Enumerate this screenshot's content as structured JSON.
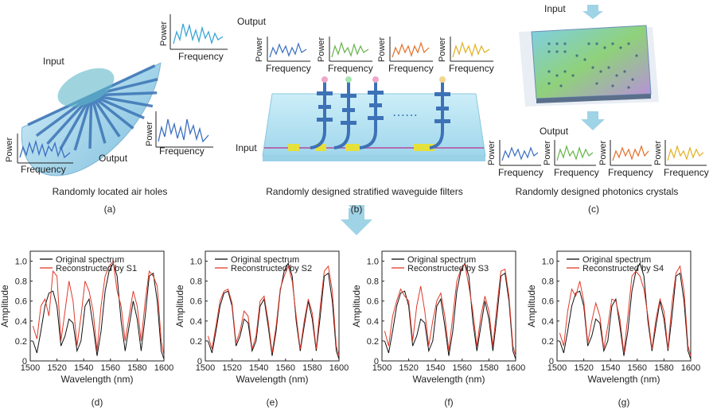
{
  "panels": {
    "a": {
      "caption": "Randomly located air holes",
      "letter": "(a)",
      "input_label": "Input",
      "output_label": "Output",
      "power_label": "Power",
      "frequency_label": "Frequency"
    },
    "b": {
      "caption": "Randomly designed stratified waveguide filters",
      "letter": "(b)",
      "input_label": "Input",
      "output_label": "Output",
      "power_label": "Power",
      "frequency_label": "Frequency",
      "dots": "......"
    },
    "c": {
      "caption": "Randomly designed photonics crystals",
      "letter": "(c)",
      "input_label": "Input",
      "output_label": "Output",
      "power_label": "Power",
      "frequency_label": "Frequency"
    }
  },
  "colors": {
    "blue": "#4a7fc0",
    "cyan": "#3aa6d6",
    "green": "#66b34a",
    "orange": "#e2712a",
    "yellow": "#e0b020",
    "arrow": "#9fd3e6",
    "original": "#111111",
    "reconstructed": "#e03a2a"
  },
  "chart_data": [
    {
      "type": "line",
      "letter": "(d)",
      "xlabel": "Wavelength (nm)",
      "ylabel": "Amplitude",
      "xlim": [
        1500,
        1600
      ],
      "ylim": [
        0,
        1.1
      ],
      "xticks": [
        1500,
        1520,
        1540,
        1560,
        1580,
        1600
      ],
      "yticks": [
        0,
        0.2,
        0.4,
        0.6,
        0.8,
        1.0
      ],
      "series": [
        {
          "name": "Original spectrum",
          "x": [
            1502,
            1505,
            1508,
            1511,
            1514,
            1517,
            1520,
            1523,
            1526,
            1529,
            1532,
            1535,
            1538,
            1541,
            1544,
            1547,
            1550,
            1553,
            1556,
            1559,
            1562,
            1565,
            1568,
            1571,
            1574,
            1577,
            1580,
            1583,
            1586,
            1589,
            1592,
            1595,
            1598,
            1600
          ],
          "y": [
            0.2,
            0.08,
            0.3,
            0.55,
            0.68,
            0.7,
            0.55,
            0.15,
            0.25,
            0.42,
            0.38,
            0.1,
            0.2,
            0.55,
            0.62,
            0.35,
            0.05,
            0.3,
            0.7,
            0.9,
            0.98,
            0.85,
            0.4,
            0.1,
            0.35,
            0.6,
            0.42,
            0.1,
            0.45,
            0.85,
            0.88,
            0.6,
            0.1,
            0.02
          ]
        },
        {
          "name": "Reconstructed by S1",
          "x": [
            1502,
            1505,
            1508,
            1511,
            1514,
            1517,
            1520,
            1523,
            1526,
            1529,
            1532,
            1535,
            1538,
            1541,
            1544,
            1547,
            1550,
            1553,
            1556,
            1559,
            1562,
            1565,
            1568,
            1571,
            1574,
            1577,
            1580,
            1583,
            1586,
            1589,
            1592,
            1595,
            1598,
            1600
          ],
          "y": [
            0.35,
            0.22,
            0.55,
            0.62,
            0.45,
            0.9,
            0.85,
            0.2,
            0.5,
            0.8,
            0.6,
            0.15,
            0.45,
            0.8,
            0.7,
            0.5,
            0.1,
            0.55,
            0.85,
            0.95,
            1.0,
            0.7,
            0.55,
            0.2,
            0.45,
            0.7,
            0.55,
            0.2,
            0.6,
            0.9,
            0.85,
            0.75,
            0.2,
            0.05
          ]
        }
      ]
    },
    {
      "type": "line",
      "letter": "(e)",
      "xlabel": "Wavelength (nm)",
      "ylabel": "Amplitude",
      "xlim": [
        1500,
        1600
      ],
      "ylim": [
        0,
        1.1
      ],
      "xticks": [
        1500,
        1520,
        1540,
        1560,
        1580,
        1600
      ],
      "yticks": [
        0,
        0.2,
        0.4,
        0.6,
        0.8,
        1.0
      ],
      "series": [
        {
          "name": "Original spectrum",
          "x": [
            1502,
            1505,
            1508,
            1511,
            1514,
            1517,
            1520,
            1523,
            1526,
            1529,
            1532,
            1535,
            1538,
            1541,
            1544,
            1547,
            1550,
            1553,
            1556,
            1559,
            1562,
            1565,
            1568,
            1571,
            1574,
            1577,
            1580,
            1583,
            1586,
            1589,
            1592,
            1595,
            1598,
            1600
          ],
          "y": [
            0.2,
            0.08,
            0.3,
            0.55,
            0.68,
            0.7,
            0.55,
            0.15,
            0.25,
            0.42,
            0.38,
            0.1,
            0.2,
            0.55,
            0.62,
            0.35,
            0.05,
            0.3,
            0.7,
            0.9,
            0.98,
            0.85,
            0.4,
            0.1,
            0.35,
            0.6,
            0.42,
            0.1,
            0.45,
            0.85,
            0.88,
            0.6,
            0.1,
            0.02
          ]
        },
        {
          "name": "Reconstructed by S2",
          "x": [
            1502,
            1505,
            1508,
            1511,
            1514,
            1517,
            1520,
            1523,
            1526,
            1529,
            1532,
            1535,
            1538,
            1541,
            1544,
            1547,
            1550,
            1553,
            1556,
            1559,
            1562,
            1565,
            1568,
            1571,
            1574,
            1577,
            1580,
            1583,
            1586,
            1589,
            1592,
            1595,
            1598,
            1600
          ],
          "y": [
            0.25,
            0.12,
            0.35,
            0.6,
            0.7,
            0.72,
            0.58,
            0.18,
            0.3,
            0.5,
            0.45,
            0.12,
            0.25,
            0.6,
            0.65,
            0.4,
            0.08,
            0.35,
            0.72,
            0.85,
            0.95,
            0.8,
            0.45,
            0.12,
            0.4,
            0.62,
            0.48,
            0.12,
            0.55,
            0.9,
            0.95,
            0.7,
            0.15,
            0.05
          ]
        }
      ]
    },
    {
      "type": "line",
      "letter": "(f)",
      "xlabel": "Wavelength (nm)",
      "ylabel": "Amplitude",
      "xlim": [
        1500,
        1600
      ],
      "ylim": [
        0,
        1.1
      ],
      "xticks": [
        1500,
        1520,
        1540,
        1560,
        1580,
        1600
      ],
      "yticks": [
        0,
        0.2,
        0.4,
        0.6,
        0.8,
        1.0
      ],
      "series": [
        {
          "name": "Original spectrum",
          "x": [
            1502,
            1505,
            1508,
            1511,
            1514,
            1517,
            1520,
            1523,
            1526,
            1529,
            1532,
            1535,
            1538,
            1541,
            1544,
            1547,
            1550,
            1553,
            1556,
            1559,
            1562,
            1565,
            1568,
            1571,
            1574,
            1577,
            1580,
            1583,
            1586,
            1589,
            1592,
            1595,
            1598,
            1600
          ],
          "y": [
            0.2,
            0.08,
            0.3,
            0.55,
            0.68,
            0.7,
            0.55,
            0.15,
            0.25,
            0.42,
            0.38,
            0.1,
            0.2,
            0.55,
            0.62,
            0.35,
            0.05,
            0.3,
            0.7,
            0.9,
            0.98,
            0.85,
            0.4,
            0.1,
            0.35,
            0.6,
            0.42,
            0.1,
            0.45,
            0.85,
            0.88,
            0.6,
            0.1,
            0.02
          ]
        },
        {
          "name": "Reconstructed by S3",
          "x": [
            1502,
            1505,
            1508,
            1511,
            1514,
            1517,
            1520,
            1523,
            1526,
            1529,
            1532,
            1535,
            1538,
            1541,
            1544,
            1547,
            1550,
            1553,
            1556,
            1559,
            1562,
            1565,
            1568,
            1571,
            1574,
            1577,
            1580,
            1583,
            1586,
            1589,
            1592,
            1595,
            1598,
            1600
          ],
          "y": [
            0.3,
            0.15,
            0.45,
            0.6,
            0.72,
            0.65,
            0.6,
            0.2,
            0.55,
            0.75,
            0.5,
            0.15,
            0.4,
            0.6,
            0.68,
            0.45,
            0.1,
            0.45,
            0.8,
            0.92,
            0.97,
            0.75,
            0.5,
            0.15,
            0.45,
            0.65,
            0.5,
            0.15,
            0.55,
            0.9,
            0.92,
            0.65,
            0.15,
            0.05
          ]
        }
      ]
    },
    {
      "type": "line",
      "letter": "(g)",
      "xlabel": "Wavelength (nm)",
      "ylabel": "Amplitude",
      "xlim": [
        1500,
        1600
      ],
      "ylim": [
        0,
        1.1
      ],
      "xticks": [
        1500,
        1520,
        1540,
        1560,
        1580,
        1600
      ],
      "yticks": [
        0,
        0.2,
        0.4,
        0.6,
        0.8,
        1.0
      ],
      "series": [
        {
          "name": "Original spectrum",
          "x": [
            1502,
            1505,
            1508,
            1511,
            1514,
            1517,
            1520,
            1523,
            1526,
            1529,
            1532,
            1535,
            1538,
            1541,
            1544,
            1547,
            1550,
            1553,
            1556,
            1559,
            1562,
            1565,
            1568,
            1571,
            1574,
            1577,
            1580,
            1583,
            1586,
            1589,
            1592,
            1595,
            1598,
            1600
          ],
          "y": [
            0.2,
            0.08,
            0.3,
            0.55,
            0.68,
            0.7,
            0.55,
            0.15,
            0.25,
            0.42,
            0.38,
            0.1,
            0.2,
            0.55,
            0.62,
            0.35,
            0.05,
            0.3,
            0.7,
            0.9,
            0.98,
            0.85,
            0.4,
            0.1,
            0.35,
            0.6,
            0.42,
            0.1,
            0.45,
            0.85,
            0.88,
            0.6,
            0.1,
            0.02
          ]
        },
        {
          "name": "Reconstructed by S4",
          "x": [
            1502,
            1505,
            1508,
            1511,
            1514,
            1517,
            1520,
            1523,
            1526,
            1529,
            1532,
            1535,
            1538,
            1541,
            1544,
            1547,
            1550,
            1553,
            1556,
            1559,
            1562,
            1565,
            1568,
            1571,
            1574,
            1577,
            1580,
            1583,
            1586,
            1589,
            1592,
            1595,
            1598,
            1600
          ],
          "y": [
            0.28,
            0.15,
            0.5,
            0.72,
            0.65,
            0.8,
            0.6,
            0.18,
            0.4,
            0.58,
            0.45,
            0.12,
            0.35,
            0.62,
            0.6,
            0.42,
            0.08,
            0.45,
            0.85,
            0.9,
            0.85,
            0.72,
            0.45,
            0.12,
            0.42,
            0.62,
            0.5,
            0.12,
            0.58,
            0.88,
            0.95,
            0.7,
            0.15,
            0.05
          ]
        }
      ]
    }
  ]
}
